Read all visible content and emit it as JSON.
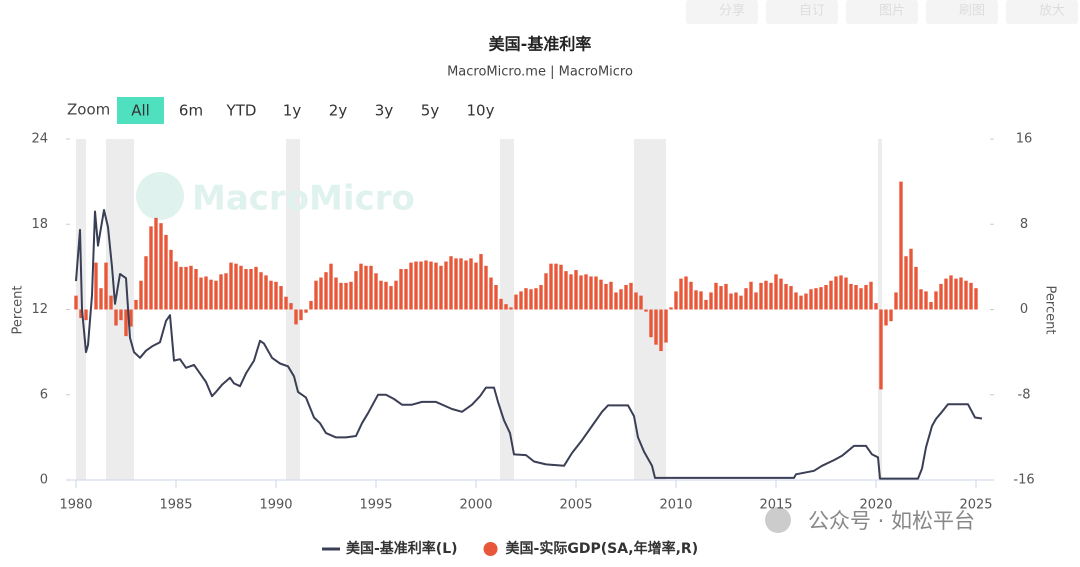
{
  "toolbar": [
    "分享",
    "自订",
    "图片",
    "刷图",
    "放大"
  ],
  "zoom": {
    "label": "Zoom",
    "options": [
      "All",
      "6m",
      "YTD",
      "1y",
      "2y",
      "3y",
      "5y",
      "10y"
    ],
    "active": "All"
  },
  "watermark": "MacroMicro",
  "footer_watermark": "公众号 · 如松平台",
  "chart_data": {
    "type": "line-bar",
    "title": "美国-基准利率",
    "subtitle": "MacroMicro.me | MacroMicro",
    "y_label": "Percent",
    "y2_label": "Percent",
    "xlim": [
      1979.7,
      2025.7
    ],
    "xticks": [
      1980,
      1985,
      1990,
      1995,
      2000,
      2005,
      2010,
      2015,
      2020,
      2025
    ],
    "ylim": [
      0,
      24
    ],
    "yticks": [
      0,
      6,
      12,
      18,
      24
    ],
    "y2lim": [
      -16,
      16
    ],
    "y2ticks": [
      -16,
      -8,
      0,
      8,
      16
    ],
    "recessions": [
      [
        1980.0,
        1980.5
      ],
      [
        1981.5,
        1982.9
      ],
      [
        1990.5,
        1991.2
      ],
      [
        2001.2,
        2001.9
      ],
      [
        2007.9,
        2009.5
      ],
      [
        2020.1,
        2020.3
      ]
    ],
    "series": [
      {
        "name": "美国-基准利率(L)",
        "type": "line",
        "color": "#3b3f55",
        "x": [
          1980.0,
          1980.2,
          1980.3,
          1980.5,
          1980.6,
          1980.8,
          1980.95,
          1981.1,
          1981.4,
          1981.6,
          1981.8,
          1981.95,
          1982.2,
          1982.5,
          1982.7,
          1982.9,
          1983.2,
          1983.5,
          1983.8,
          1984.2,
          1984.5,
          1984.7,
          1984.9,
          1985.2,
          1985.5,
          1985.9,
          1986.2,
          1986.5,
          1986.8,
          1987.0,
          1987.3,
          1987.7,
          1987.9,
          1988.2,
          1988.5,
          1988.9,
          1989.2,
          1989.4,
          1989.8,
          1990.2,
          1990.6,
          1990.9,
          1991.1,
          1991.5,
          1991.9,
          1992.2,
          1992.5,
          1993.0,
          1993.5,
          1994.0,
          1994.3,
          1994.6,
          1995.1,
          1995.5,
          1995.9,
          1996.3,
          1996.8,
          1997.3,
          1998.0,
          1998.8,
          1999.3,
          1999.8,
          2000.2,
          2000.5,
          2000.9,
          2001.1,
          2001.4,
          2001.7,
          2001.9,
          2002.5,
          2002.9,
          2003.5,
          2004.4,
          2004.8,
          2005.3,
          2005.8,
          2006.3,
          2006.6,
          2007.6,
          2007.9,
          2008.1,
          2008.4,
          2008.8,
          2008.95,
          2012,
          2015.9,
          2016.0,
          2016.9,
          2017.3,
          2017.9,
          2018.3,
          2018.9,
          2019.5,
          2019.8,
          2020.1,
          2020.2,
          2022.1,
          2022.3,
          2022.5,
          2022.8,
          2023.0,
          2023.3,
          2023.6,
          2024.6,
          2024.8,
          2024.95,
          2025.3
        ],
        "values": [
          14,
          17.6,
          12,
          9.0,
          9.5,
          13,
          18.9,
          16.5,
          19,
          17.8,
          15,
          12.4,
          14.5,
          14.2,
          10,
          9.0,
          8.6,
          9.1,
          9.4,
          9.7,
          11.2,
          11.6,
          8.4,
          8.5,
          7.9,
          8.1,
          7.5,
          6.9,
          5.9,
          6.2,
          6.7,
          7.2,
          6.8,
          6.6,
          7.5,
          8.4,
          9.8,
          9.6,
          8.6,
          8.2,
          8.0,
          7.3,
          6.2,
          5.8,
          4.4,
          4.0,
          3.3,
          3.0,
          3.0,
          3.1,
          4.0,
          4.7,
          6.0,
          6.0,
          5.7,
          5.3,
          5.3,
          5.5,
          5.5,
          5.0,
          4.8,
          5.3,
          5.9,
          6.5,
          6.5,
          5.5,
          4.2,
          3.3,
          1.8,
          1.75,
          1.3,
          1.1,
          1.0,
          1.9,
          2.8,
          3.8,
          4.8,
          5.25,
          5.25,
          4.5,
          3.0,
          2.0,
          1.0,
          0.15,
          0.15,
          0.15,
          0.4,
          0.65,
          1.0,
          1.4,
          1.7,
          2.4,
          2.4,
          1.8,
          1.6,
          0.1,
          0.1,
          0.8,
          2.3,
          3.8,
          4.3,
          4.8,
          5.33,
          5.33,
          4.8,
          4.4,
          4.33
        ]
      },
      {
        "name": "美国-实际GDP(SA,年增率,R)",
        "type": "bar",
        "axis": "y2",
        "color": "#e8573a",
        "x": [
          1980.0,
          1980.25,
          1980.5,
          1980.75,
          1981.0,
          1981.25,
          1981.5,
          1981.75,
          1982.0,
          1982.25,
          1982.5,
          1982.75,
          1983.0,
          1983.25,
          1983.5,
          1983.75,
          1984.0,
          1984.25,
          1984.5,
          1984.75,
          1985.0,
          1985.25,
          1985.5,
          1985.75,
          1986.0,
          1986.25,
          1986.5,
          1986.75,
          1987.0,
          1987.25,
          1987.5,
          1987.75,
          1988.0,
          1988.25,
          1988.5,
          1988.75,
          1989.0,
          1989.25,
          1989.5,
          1989.75,
          1990.0,
          1990.25,
          1990.5,
          1990.75,
          1991.0,
          1991.25,
          1991.5,
          1991.75,
          1992.0,
          1992.25,
          1992.5,
          1992.75,
          1993.0,
          1993.25,
          1993.5,
          1993.75,
          1994.0,
          1994.25,
          1994.5,
          1994.75,
          1995.0,
          1995.25,
          1995.5,
          1995.75,
          1996.0,
          1996.25,
          1996.5,
          1996.75,
          1997.0,
          1997.25,
          1997.5,
          1997.75,
          1998.0,
          1998.25,
          1998.5,
          1998.75,
          1999.0,
          1999.25,
          1999.5,
          1999.75,
          2000.0,
          2000.25,
          2000.5,
          2000.75,
          2001.0,
          2001.25,
          2001.5,
          2001.75,
          2002.0,
          2002.25,
          2002.5,
          2002.75,
          2003.0,
          2003.25,
          2003.5,
          2003.75,
          2004.0,
          2004.25,
          2004.5,
          2004.75,
          2005.0,
          2005.25,
          2005.5,
          2005.75,
          2006.0,
          2006.25,
          2006.5,
          2006.75,
          2007.0,
          2007.25,
          2007.5,
          2007.75,
          2008.0,
          2008.25,
          2008.5,
          2008.75,
          2009.0,
          2009.25,
          2009.5,
          2009.75,
          2010.0,
          2010.25,
          2010.5,
          2010.75,
          2011.0,
          2011.25,
          2011.5,
          2011.75,
          2012.0,
          2012.25,
          2012.5,
          2012.75,
          2013.0,
          2013.25,
          2013.5,
          2013.75,
          2014.0,
          2014.25,
          2014.5,
          2014.75,
          2015.0,
          2015.25,
          2015.5,
          2015.75,
          2016.0,
          2016.25,
          2016.5,
          2016.75,
          2017.0,
          2017.25,
          2017.5,
          2017.75,
          2018.0,
          2018.25,
          2018.5,
          2018.75,
          2019.0,
          2019.25,
          2019.5,
          2019.75,
          2020.0,
          2020.25,
          2020.5,
          2020.75,
          2021.0,
          2021.25,
          2021.5,
          2021.75,
          2022.0,
          2022.25,
          2022.5,
          2022.75,
          2023.0,
          2023.25,
          2023.5,
          2023.75,
          2024.0,
          2024.25,
          2024.5,
          2024.75,
          2025.0
        ],
        "values": [
          1.3,
          -0.8,
          -1.0,
          0,
          4.4,
          2.0,
          4.4,
          1.3,
          -1.5,
          -1.0,
          -2.5,
          -1.6,
          0.9,
          2.7,
          5.0,
          7.8,
          8.6,
          8.1,
          7.0,
          5.6,
          4.5,
          4.0,
          4.0,
          4.1,
          3.8,
          3.0,
          3.1,
          2.8,
          2.7,
          3.3,
          3.4,
          4.4,
          4.3,
          4.1,
          3.8,
          3.8,
          4.0,
          3.5,
          3.2,
          2.7,
          2.6,
          2.2,
          1.2,
          0.6,
          -1.4,
          -1.0,
          -0.3,
          0.8,
          2.7,
          3.0,
          3.5,
          4.3,
          3.0,
          2.5,
          2.5,
          2.6,
          3.6,
          4.3,
          4.1,
          4.1,
          3.4,
          2.7,
          2.6,
          2.2,
          2.7,
          3.8,
          3.8,
          4.4,
          4.5,
          4.5,
          4.6,
          4.5,
          4.4,
          4.1,
          4.5,
          5.0,
          4.8,
          4.8,
          4.6,
          4.8,
          4.4,
          5.2,
          4.1,
          3.0,
          2.3,
          1.0,
          0.5,
          0.2,
          1.4,
          1.7,
          2.0,
          1.9,
          2.0,
          2.3,
          3.4,
          4.3,
          4.3,
          4.2,
          3.6,
          3.3,
          3.7,
          3.2,
          3.3,
          3.1,
          3.1,
          2.8,
          2.4,
          2.6,
          1.6,
          1.9,
          2.3,
          2.5,
          1.6,
          1.3,
          -0.2,
          -2.6,
          -3.3,
          -3.9,
          -3.1,
          0.2,
          1.7,
          2.9,
          3.1,
          2.6,
          1.8,
          1.7,
          0.9,
          1.6,
          2.5,
          2.2,
          2.4,
          1.5,
          1.6,
          1.3,
          2.0,
          2.6,
          1.6,
          2.5,
          2.7,
          2.5,
          3.3,
          2.9,
          2.4,
          2.2,
          1.6,
          1.3,
          1.5,
          1.9,
          2.0,
          2.1,
          2.3,
          2.7,
          3.1,
          3.2,
          3.0,
          2.4,
          2.3,
          2.0,
          2.3,
          2.6,
          0.6,
          -7.5,
          -1.5,
          -1.1,
          1.6,
          12.0,
          5.0,
          5.7,
          4.0,
          1.9,
          1.7,
          0.7,
          1.7,
          2.4,
          2.9,
          3.2,
          2.9,
          3.0,
          2.7,
          2.5,
          2.0
        ]
      }
    ]
  }
}
